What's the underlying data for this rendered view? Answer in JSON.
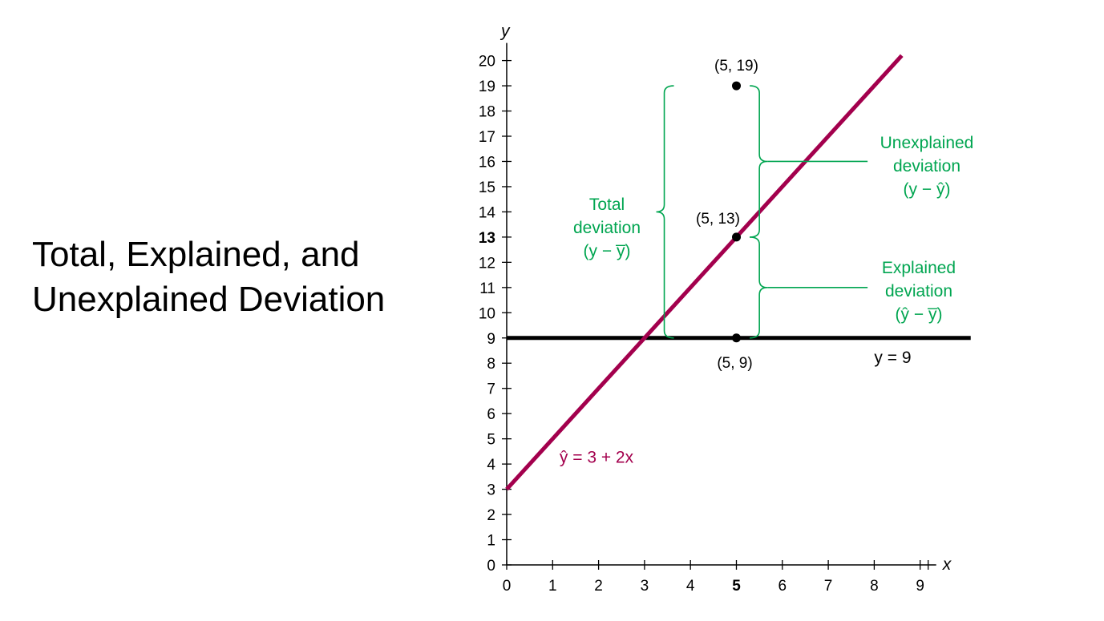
{
  "title": {
    "line1": "Total, Explained, and",
    "line2": "Unexplained Deviation"
  },
  "colors": {
    "regression": "#a3004d",
    "mean_line": "#000000",
    "annotation": "#00a550",
    "point": "#000000"
  },
  "chart_data": {
    "type": "line",
    "xlabel": "x",
    "ylabel": "y",
    "xlim": [
      0,
      9
    ],
    "ylim": [
      0,
      20
    ],
    "x_ticks": [
      0,
      1,
      2,
      3,
      4,
      5,
      6,
      7,
      8,
      9
    ],
    "y_ticks": [
      0,
      1,
      2,
      3,
      4,
      5,
      6,
      7,
      8,
      9,
      10,
      11,
      12,
      13,
      14,
      15,
      16,
      17,
      18,
      19,
      20
    ],
    "highlight_x_tick": 5,
    "highlight_y_tick": 13,
    "grid": false,
    "series": [
      {
        "name": "ŷ = 3 + 2x",
        "intercept": 3,
        "slope": 2,
        "x": [
          0,
          8.6
        ],
        "y": [
          3,
          20.2
        ]
      },
      {
        "name": "y = 9",
        "x": [
          0,
          10.1
        ],
        "y": [
          9,
          9
        ]
      }
    ],
    "points": [
      {
        "x": 5,
        "y": 19,
        "label": "(5, 19)"
      },
      {
        "x": 5,
        "y": 13,
        "label": "(5, 13)"
      },
      {
        "x": 5,
        "y": 9,
        "label": "(5, 9)"
      }
    ],
    "annotations": {
      "total": {
        "line1": "Total",
        "line2": "deviation",
        "line3": "(y − y̅)",
        "from": 9,
        "to": 19
      },
      "unexplained": {
        "line1": "Unexplained",
        "line2": "deviation",
        "line3": "(y − ŷ)",
        "from": 13,
        "to": 19
      },
      "explained": {
        "line1": "Explained",
        "line2": "deviation",
        "line3": "(ŷ − y̅)",
        "from": 9,
        "to": 13
      }
    }
  }
}
